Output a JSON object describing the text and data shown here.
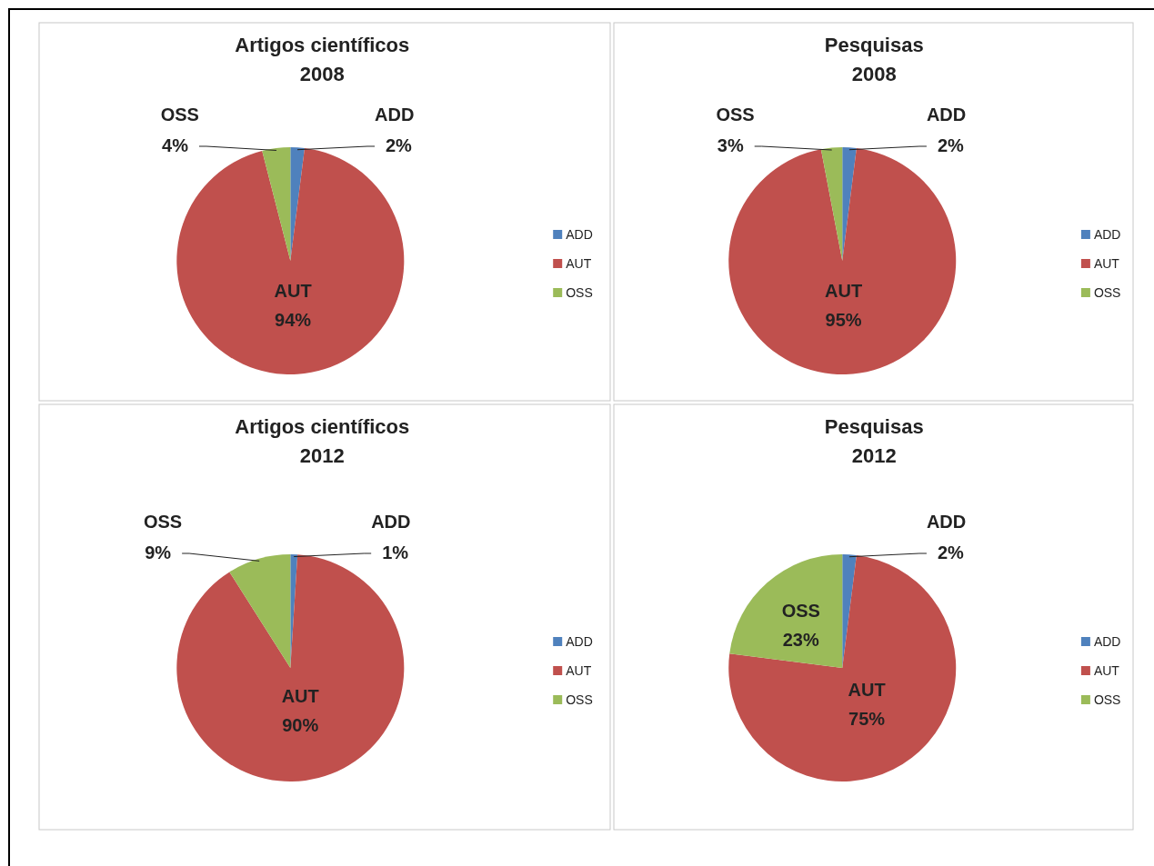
{
  "chart_data": [
    {
      "type": "pie",
      "title": "Artigos científicos 2008",
      "categories": [
        "ADD",
        "AUT",
        "OSS"
      ],
      "values": [
        2,
        94,
        4
      ],
      "colors": [
        "#4f81bd",
        "#c0504d",
        "#9bbb59"
      ],
      "value_labels": [
        "2%",
        "94%",
        "4%"
      ],
      "legend": "right"
    },
    {
      "type": "pie",
      "title": "Pesquisas 2008",
      "categories": [
        "ADD",
        "AUT",
        "OSS"
      ],
      "values": [
        2,
        95,
        3
      ],
      "colors": [
        "#4f81bd",
        "#c0504d",
        "#9bbb59"
      ],
      "value_labels": [
        "2%",
        "95%",
        "3%"
      ],
      "legend": "right"
    },
    {
      "type": "pie",
      "title": "Artigos científicos 2012",
      "categories": [
        "ADD",
        "AUT",
        "OSS"
      ],
      "values": [
        1,
        90,
        9
      ],
      "colors": [
        "#4f81bd",
        "#c0504d",
        "#9bbb59"
      ],
      "value_labels": [
        "1%",
        "90%",
        "9%"
      ],
      "legend": "right"
    },
    {
      "type": "pie",
      "title": "Pesquisas 2012",
      "categories": [
        "ADD",
        "AUT",
        "OSS"
      ],
      "values": [
        2,
        75,
        23
      ],
      "colors": [
        "#4f81bd",
        "#c0504d",
        "#9bbb59"
      ],
      "value_labels": [
        "2%",
        "75%",
        "23%"
      ],
      "legend": "right"
    }
  ]
}
